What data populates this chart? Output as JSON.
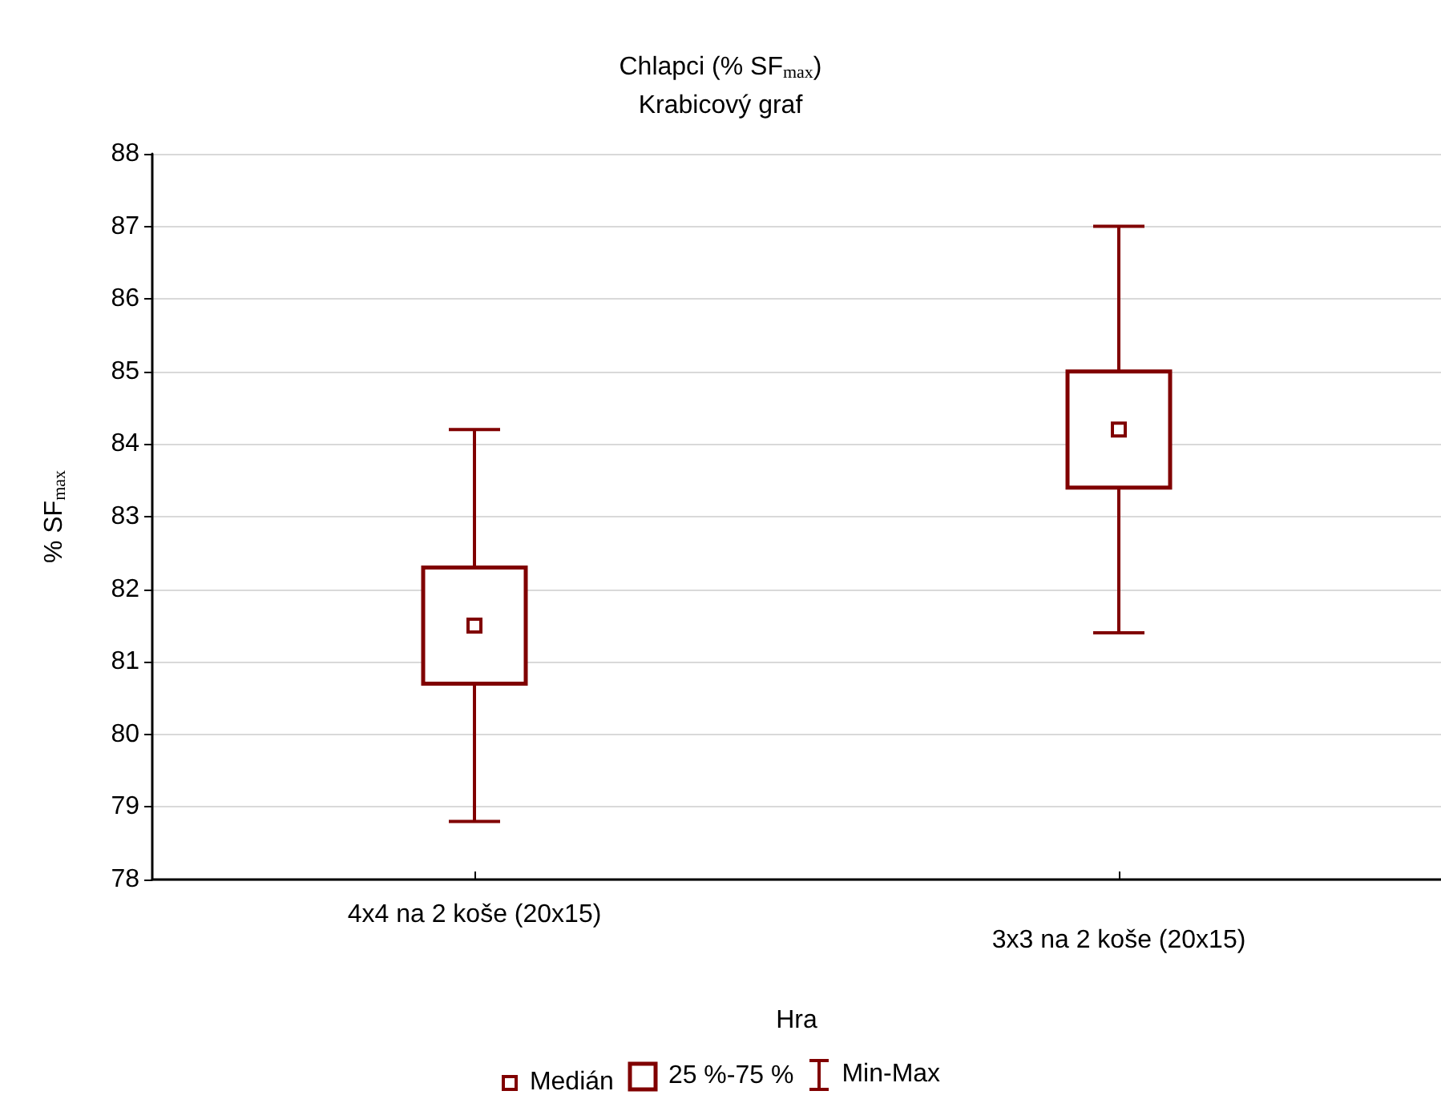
{
  "chart_data": {
    "type": "box",
    "title": "Chlapci (% SF$_{max}$)",
    "subtitle": "Krabicový graf",
    "xlabel": "Hra",
    "ylabel": "% SF$_{max}$",
    "categories": [
      "4x4 na 2 koše (20x15)",
      "3x3 na 2 koše (20x15)"
    ],
    "series": [
      {
        "color": "#800000",
        "boxes": [
          {
            "low": 78.8,
            "q1": 80.7,
            "median": 81.5,
            "q3": 82.3,
            "high": 84.2
          },
          {
            "low": 81.4,
            "q1": 83.4,
            "median": 84.2,
            "q3": 85.0,
            "high": 87.0
          }
        ]
      }
    ],
    "ylim": [
      78,
      88
    ],
    "yticks": [
      78,
      79,
      80,
      81,
      82,
      83,
      84,
      85,
      86,
      87,
      88
    ],
    "grid": "y",
    "annotations": [
      "Medián",
      "25 %-75 %",
      "Min-Max"
    ]
  }
}
